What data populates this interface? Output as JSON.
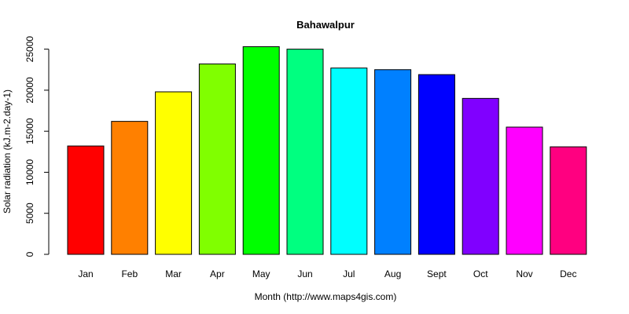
{
  "chart_data": {
    "type": "bar",
    "title": "Bahawalpur",
    "xlabel": "Month (http://www.maps4gis.com)",
    "ylabel": "Solar radiation (kJ.m-2.day-1)",
    "categories": [
      "Jan",
      "Feb",
      "Mar",
      "Apr",
      "May",
      "Jun",
      "Jul",
      "Aug",
      "Sept",
      "Oct",
      "Nov",
      "Dec"
    ],
    "values": [
      13200,
      16200,
      19800,
      23200,
      25300,
      25000,
      22700,
      22500,
      21900,
      19000,
      15500,
      13100
    ],
    "colors": [
      "#FF0000",
      "#FF8000",
      "#FFFF00",
      "#80FF00",
      "#00FF00",
      "#00FF80",
      "#00FFFF",
      "#0080FF",
      "#0000FF",
      "#8000FF",
      "#FF00FF",
      "#FF0080"
    ],
    "ylim": [
      0,
      26500
    ],
    "yticks": [
      0,
      5000,
      10000,
      15000,
      20000,
      25000
    ],
    "ytick_labels": [
      "0",
      "5000",
      "10000",
      "15000",
      "20000",
      "25000"
    ],
    "grid": false,
    "legend": "none"
  }
}
